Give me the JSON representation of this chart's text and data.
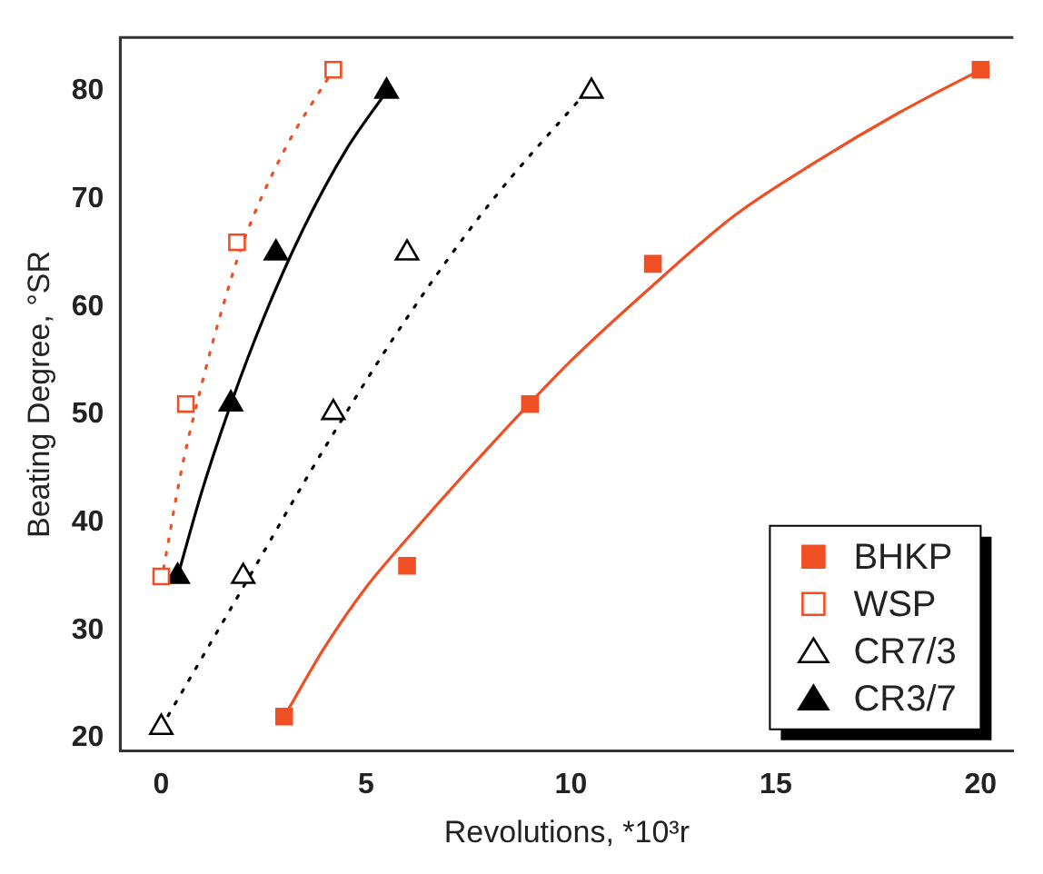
{
  "chart_data": {
    "type": "scatter",
    "xlabel": "Revolutions, *10³r",
    "ylabel": "Beating Degree, °SR",
    "xlim": [
      -1,
      20.8
    ],
    "ylim": [
      18.8,
      85
    ],
    "xticks": [
      0,
      5,
      10,
      15,
      20
    ],
    "yticks": [
      20,
      30,
      40,
      50,
      60,
      70,
      80
    ],
    "grid": false,
    "legend": "bottom right",
    "series": [
      {
        "name": "BHKP",
        "marker": "square",
        "color": "#f04e23",
        "x": [
          3,
          6,
          9,
          12,
          20
        ],
        "values": [
          22,
          36,
          51,
          64,
          82
        ]
      },
      {
        "name": "WSP",
        "marker": "square",
        "color": "#f04e23",
        "x": [
          0,
          0.6,
          1.85,
          4.2
        ],
        "values": [
          35,
          51,
          66,
          82
        ]
      },
      {
        "name": "CR7/3",
        "marker": "triangle",
        "color": "#000000",
        "x": [
          0,
          2,
          4.2,
          6,
          10.5
        ],
        "values": [
          21,
          35,
          50.2,
          65,
          80
        ]
      },
      {
        "name": "CR3/7",
        "marker": "triangle",
        "color": "#000000",
        "x": [
          0.4,
          1.7,
          2.8,
          5.5
        ],
        "values": [
          35,
          51,
          65,
          80
        ]
      },
      {
        "type": "line",
        "line_style": "solid",
        "color": "#f04e23",
        "x": [
          3,
          4,
          5,
          6,
          8,
          10,
          12,
          14,
          16,
          18,
          20
        ],
        "values": [
          22,
          28.5,
          34,
          38.5,
          47,
          55,
          62,
          68.5,
          73.5,
          78,
          82
        ]
      },
      {
        "type": "line",
        "line_style": "dotted",
        "color": "#f04e23",
        "x": [
          0,
          0.5,
          1,
          1.5,
          2,
          3,
          4.2
        ],
        "values": [
          34.5,
          45,
          53,
          60,
          66,
          74.5,
          82
        ]
      },
      {
        "type": "line",
        "line_style": "dotted",
        "color": "#000000",
        "x": [
          0,
          2,
          4,
          6,
          8,
          10.5
        ],
        "values": [
          21,
          34,
          47,
          59,
          69.5,
          80.5
        ]
      },
      {
        "type": "line",
        "line_style": "solid",
        "color": "#000000",
        "x": [
          0.4,
          1,
          1.7,
          2.5,
          3.5,
          4.5,
          5.5
        ],
        "values": [
          35,
          43,
          51,
          59,
          67.5,
          74.5,
          80
        ]
      }
    ]
  }
}
